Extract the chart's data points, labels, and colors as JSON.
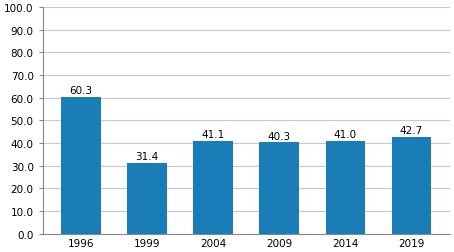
{
  "categories": [
    "1996",
    "1999",
    "2004",
    "2009",
    "2014",
    "2019"
  ],
  "values": [
    60.3,
    31.4,
    41.1,
    40.3,
    41.0,
    42.7
  ],
  "bar_color": "#1b7db8",
  "ylim": [
    0,
    100
  ],
  "yticks": [
    0.0,
    10.0,
    20.0,
    30.0,
    40.0,
    50.0,
    60.0,
    70.0,
    80.0,
    90.0,
    100.0
  ],
  "grid_color": "#c8c8c8",
  "background_color": "#ffffff",
  "label_fontsize": 7.5,
  "tick_fontsize": 7.5,
  "bar_width": 0.6
}
